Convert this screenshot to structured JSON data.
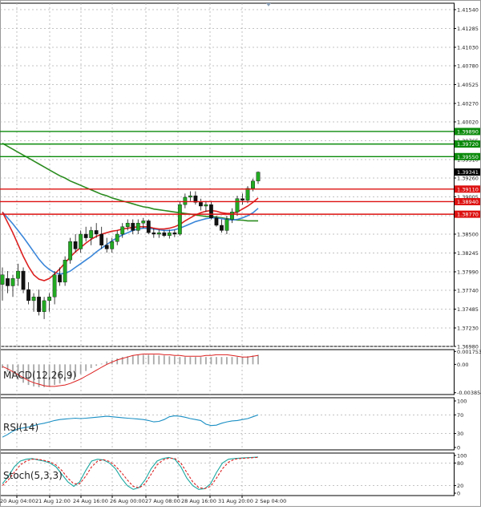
{
  "chart_data": [
    {
      "type": "candlestick",
      "price_ticks": [
        "1.41540",
        "1.41285",
        "1.41030",
        "1.40780",
        "1.40525",
        "1.40270",
        "1.40020",
        "1.39765",
        "1.39510",
        "1.39260",
        "1.39005",
        "1.38750",
        "1.38500",
        "1.38245",
        "1.37990",
        "1.37740",
        "1.37485",
        "1.37230",
        "1.36980"
      ],
      "ylim": [
        1.3698,
        1.4154
      ],
      "time_labels": [
        "20 Aug 04:00",
        "21 Aug 12:00",
        "24 Aug 16:00",
        "26 Aug 00:00",
        "27 Aug 08:00",
        "28 Aug 16:00",
        "31 Aug 20:00",
        "2 Sep 04:00"
      ],
      "current_price": "1.39341",
      "levels": [
        {
          "label": "1.39890",
          "value": 1.3989,
          "color": "#0a8a0a"
        },
        {
          "label": "1.39720",
          "value": 1.3972,
          "color": "#0a8a0a"
        },
        {
          "label": "1.39550",
          "value": 1.3955,
          "color": "#0a8a0a"
        },
        {
          "label": "1.39110",
          "value": 1.3911,
          "color": "#dd1111"
        },
        {
          "label": "1.38940",
          "value": 1.3894,
          "color": "#dd1111"
        },
        {
          "label": "1.38770",
          "value": 1.3877,
          "color": "#dd1111"
        }
      ],
      "candles": [
        [
          1.3782,
          1.3805,
          1.376,
          1.3795
        ],
        [
          1.379,
          1.38,
          1.377,
          1.378
        ],
        [
          1.378,
          1.3795,
          1.3765,
          1.379
        ],
        [
          1.379,
          1.381,
          1.378,
          1.38
        ],
        [
          1.38,
          1.3805,
          1.377,
          1.3775
        ],
        [
          1.3775,
          1.3785,
          1.3755,
          1.376
        ],
        [
          1.376,
          1.377,
          1.3745,
          1.3765
        ],
        [
          1.3765,
          1.3775,
          1.374,
          1.3745
        ],
        [
          1.3745,
          1.3765,
          1.3735,
          1.376
        ],
        [
          1.376,
          1.377,
          1.3745,
          1.3765
        ],
        [
          1.3765,
          1.38,
          1.3755,
          1.3795
        ],
        [
          1.3795,
          1.3805,
          1.378,
          1.3785
        ],
        [
          1.3785,
          1.382,
          1.378,
          1.3815
        ],
        [
          1.3815,
          1.3845,
          1.381,
          1.384
        ],
        [
          1.384,
          1.385,
          1.3825,
          1.383
        ],
        [
          1.383,
          1.3855,
          1.3825,
          1.385
        ],
        [
          1.385,
          1.386,
          1.384,
          1.3845
        ],
        [
          1.3845,
          1.386,
          1.3835,
          1.3855
        ],
        [
          1.3855,
          1.3865,
          1.3845,
          1.385
        ],
        [
          1.385,
          1.386,
          1.383,
          1.3835
        ],
        [
          1.3835,
          1.3845,
          1.3825,
          1.383
        ],
        [
          1.383,
          1.3845,
          1.3825,
          1.384
        ],
        [
          1.384,
          1.3855,
          1.3835,
          1.385
        ],
        [
          1.385,
          1.3865,
          1.3845,
          1.386
        ],
        [
          1.386,
          1.387,
          1.3855,
          1.3865
        ],
        [
          1.3865,
          1.387,
          1.385,
          1.3855
        ],
        [
          1.3855,
          1.387,
          1.385,
          1.3865
        ],
        [
          1.3865,
          1.3872,
          1.3858,
          1.3868
        ],
        [
          1.3868,
          1.387,
          1.385,
          1.3852
        ],
        [
          1.3852,
          1.3858,
          1.3845,
          1.385
        ],
        [
          1.385,
          1.3856,
          1.3845,
          1.3852
        ],
        [
          1.3852,
          1.3855,
          1.3846,
          1.3848
        ],
        [
          1.3848,
          1.3856,
          1.3844,
          1.3852
        ],
        [
          1.3852,
          1.3856,
          1.3846,
          1.385
        ],
        [
          1.385,
          1.3895,
          1.3848,
          1.389
        ],
        [
          1.389,
          1.3905,
          1.3885,
          1.39
        ],
        [
          1.39,
          1.3908,
          1.3895,
          1.3902
        ],
        [
          1.3902,
          1.3908,
          1.389,
          1.3893
        ],
        [
          1.3893,
          1.3898,
          1.3882,
          1.3888
        ],
        [
          1.3888,
          1.3895,
          1.388,
          1.389
        ],
        [
          1.389,
          1.3895,
          1.387,
          1.3872
        ],
        [
          1.3872,
          1.3875,
          1.386,
          1.3862
        ],
        [
          1.3862,
          1.387,
          1.3852,
          1.3855
        ],
        [
          1.3855,
          1.3875,
          1.385,
          1.387
        ],
        [
          1.387,
          1.3885,
          1.3865,
          1.388
        ],
        [
          1.388,
          1.3902,
          1.3875,
          1.3898
        ],
        [
          1.3898,
          1.3905,
          1.389,
          1.3896
        ],
        [
          1.3896,
          1.3915,
          1.3892,
          1.3912
        ],
        [
          1.3912,
          1.3925,
          1.3908,
          1.3922
        ],
        [
          1.3922,
          1.3935,
          1.3918,
          1.3934
        ]
      ],
      "ma_long": [
        1.3973,
        1.3969,
        1.3965,
        1.3961,
        1.3957,
        1.3953,
        1.3949,
        1.3945,
        1.3941,
        1.3937,
        1.3933,
        1.3929,
        1.3926,
        1.3922,
        1.3919,
        1.3916,
        1.3913,
        1.391,
        1.3907,
        1.3904,
        1.3902,
        1.3899,
        1.3897,
        1.3895,
        1.3893,
        1.3891,
        1.3889,
        1.3887,
        1.3886,
        1.3884,
        1.3883,
        1.3882,
        1.3881,
        1.388,
        1.3879,
        1.3878,
        1.3877,
        1.3876,
        1.3875,
        1.3874,
        1.3874,
        1.3873,
        1.3872,
        1.3871,
        1.387,
        1.3869,
        1.3869,
        1.3868,
        1.3868,
        1.3868
      ],
      "ma_mid": [
        1.388,
        1.3872,
        1.3864,
        1.3855,
        1.3846,
        1.3836,
        1.3826,
        1.3816,
        1.3808,
        1.3802,
        1.3798,
        1.3796,
        1.3797,
        1.38,
        1.3805,
        1.381,
        1.3815,
        1.382,
        1.3826,
        1.3831,
        1.3836,
        1.3841,
        1.3845,
        1.3849,
        1.3852,
        1.3855,
        1.3857,
        1.3858,
        1.3858,
        1.3857,
        1.3856,
        1.3855,
        1.3855,
        1.3856,
        1.3858,
        1.3861,
        1.3864,
        1.3867,
        1.3869,
        1.3871,
        1.3872,
        1.3872,
        1.3871,
        1.387,
        1.3869,
        1.387,
        1.3872,
        1.3875,
        1.3879,
        1.3885
      ],
      "ma_short": [
        1.388,
        1.3866,
        1.3852,
        1.3836,
        1.382,
        1.3806,
        1.3795,
        1.3789,
        1.3787,
        1.379,
        1.3796,
        1.3803,
        1.3811,
        1.3819,
        1.3826,
        1.3832,
        1.3838,
        1.3843,
        1.3847,
        1.385,
        1.3852,
        1.3854,
        1.3855,
        1.3857,
        1.3858,
        1.3859,
        1.386,
        1.386,
        1.386,
        1.3858,
        1.3857,
        1.3857,
        1.3858,
        1.386,
        1.3863,
        1.3868,
        1.3872,
        1.3876,
        1.3879,
        1.3881,
        1.3882,
        1.3881,
        1.3879,
        1.3878,
        1.3878,
        1.388,
        1.3884,
        1.3888,
        1.3893,
        1.3899
      ]
    },
    {
      "type": "histogram",
      "title": "MACD(12,26,9)",
      "ticks": [
        "0.001753",
        "0.00",
        "-0.003854"
      ],
      "ylim": [
        -0.0041,
        0.002
      ],
      "hist": [
        -0.0005,
        -0.001,
        -0.0016,
        -0.0021,
        -0.0025,
        -0.0028,
        -0.003,
        -0.0031,
        -0.0031,
        -0.003,
        -0.0028,
        -0.0026,
        -0.0023,
        -0.002,
        -0.0017,
        -0.0013,
        -0.0009,
        -0.0005,
        -0.0002,
        0.0001,
        0.0004,
        0.0006,
        0.0008,
        0.001,
        0.0011,
        0.0012,
        0.0013,
        0.0013,
        0.0013,
        0.0013,
        0.0012,
        0.0012,
        0.0011,
        0.0011,
        0.001,
        0.001,
        0.001,
        0.001,
        0.001,
        0.001,
        0.001,
        0.001,
        0.001,
        0.001,
        0.001,
        0.001,
        0.001,
        0.0011,
        0.0012,
        0.0013
      ],
      "signal": [
        -0.0003,
        -0.0006,
        -0.001,
        -0.0014,
        -0.0018,
        -0.0022,
        -0.0025,
        -0.0027,
        -0.0029,
        -0.003,
        -0.003,
        -0.0029,
        -0.0028,
        -0.0026,
        -0.0023,
        -0.002,
        -0.0016,
        -0.0012,
        -0.0008,
        -0.0004,
        0.0,
        0.0003,
        0.0006,
        0.0008,
        0.001,
        0.0012,
        0.0013,
        0.0014,
        0.0014,
        0.0014,
        0.0014,
        0.0013,
        0.0013,
        0.0012,
        0.0012,
        0.0011,
        0.0011,
        0.0011,
        0.0011,
        0.0012,
        0.0012,
        0.0013,
        0.0013,
        0.0013,
        0.0012,
        0.0011,
        0.001,
        0.001,
        0.0011,
        0.0012
      ]
    },
    {
      "type": "line",
      "title": "RSI(14)",
      "ticks": [
        "100",
        "70",
        "30",
        "0"
      ],
      "ylim": [
        0,
        100
      ],
      "values": [
        22,
        28,
        35,
        40,
        42,
        44,
        47,
        50,
        52,
        55,
        58,
        60,
        61,
        62,
        63,
        62,
        63,
        64,
        65,
        66,
        67,
        66,
        65,
        64,
        63,
        62,
        61,
        60,
        58,
        55,
        56,
        60,
        66,
        68,
        67,
        65,
        62,
        60,
        58,
        50,
        47,
        48,
        52,
        55,
        57,
        58,
        60,
        62,
        66,
        70
      ]
    },
    {
      "type": "line",
      "title": "Stoch(5,3,3)",
      "ticks": [
        "100",
        "80",
        "20",
        "0"
      ],
      "ylim": [
        0,
        100
      ],
      "k": [
        25,
        45,
        70,
        85,
        90,
        92,
        88,
        85,
        80,
        70,
        50,
        30,
        18,
        30,
        60,
        85,
        90,
        88,
        80,
        65,
        40,
        20,
        10,
        15,
        35,
        65,
        85,
        92,
        95,
        90,
        70,
        40,
        20,
        10,
        12,
        25,
        55,
        80,
        90,
        92,
        93,
        94,
        95,
        96
      ],
      "d": [
        20,
        35,
        55,
        75,
        85,
        90,
        90,
        87,
        83,
        75,
        60,
        40,
        25,
        25,
        45,
        70,
        85,
        89,
        84,
        72,
        55,
        35,
        18,
        14,
        25,
        50,
        75,
        88,
        93,
        92,
        80,
        55,
        30,
        15,
        12,
        18,
        40,
        65,
        82,
        90,
        92,
        93,
        94,
        95
      ]
    }
  ]
}
